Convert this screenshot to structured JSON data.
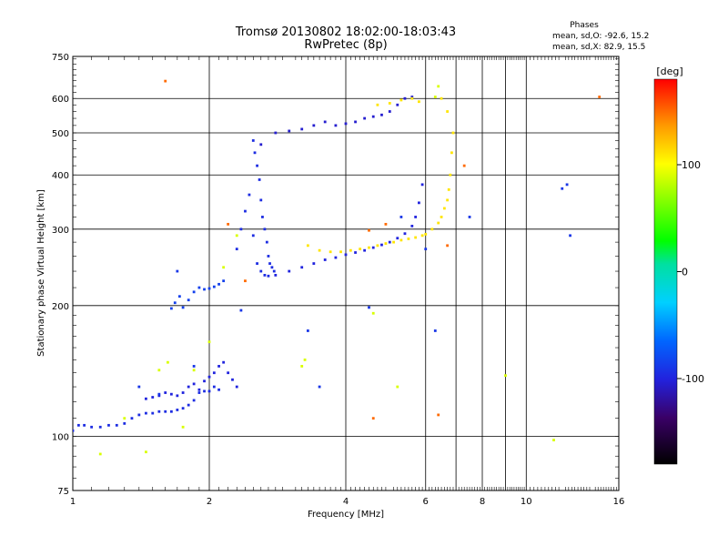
{
  "chart_data": {
    "type": "scatter",
    "title": "Tromsø 20130802 18:02:00-18:03:43",
    "subtitle": "RwPretec (8p)",
    "xlabel": "Frequency [MHz]",
    "ylabel": "Stationary phase Virtual Height [km]",
    "x_scale": "log",
    "y_scale": "log",
    "xlim": [
      1,
      16
    ],
    "ylim": [
      75,
      750
    ],
    "x_ticks": [
      1,
      2,
      4,
      6,
      8,
      10,
      16
    ],
    "x_tick_labels": [
      "1",
      "2",
      "4",
      "6",
      "8",
      "10",
      "16"
    ],
    "x_grid": [
      2,
      4,
      6,
      7,
      8,
      9,
      10
    ],
    "y_ticks": [
      75,
      100,
      200,
      300,
      400,
      500,
      600,
      750
    ],
    "y_tick_labels": [
      "75",
      "100",
      "200",
      "300",
      "400",
      "500",
      "600",
      "750"
    ],
    "y_grid": [
      100,
      200,
      300,
      400,
      500,
      600
    ],
    "grid": true,
    "phase_info": {
      "heading": "Phases",
      "line_o": "mean, sd,O: -92.6, 15.2",
      "line_x": "mean, sd,X:  82.9, 15.5"
    },
    "colorbar": {
      "label": "[deg]",
      "range": [
        -180,
        180
      ],
      "ticks": [
        100,
        0,
        -100
      ],
      "tick_labels": [
        "100",
        "0",
        "-100"
      ]
    },
    "series": [
      {
        "phase": -95,
        "x": [
          1.0,
          1.03,
          1.06,
          1.1,
          1.15,
          1.2,
          1.25,
          1.3,
          1.35,
          1.4,
          1.45,
          1.5,
          1.55,
          1.6,
          1.65,
          1.7,
          1.75,
          1.8,
          1.85,
          1.9,
          1.95,
          2.0,
          2.05,
          2.1
        ],
        "y": [
          103,
          106,
          106,
          105,
          105,
          106,
          106,
          107,
          110,
          112,
          113,
          113,
          114,
          114,
          114,
          115,
          116,
          118,
          121,
          126,
          127,
          127,
          130,
          128
        ]
      },
      {
        "phase": -100,
        "x": [
          1.45,
          1.5,
          1.55,
          1.6,
          1.65,
          1.7,
          1.75,
          1.8,
          1.85,
          1.9,
          1.95,
          2.0,
          2.05,
          2.1,
          2.15,
          2.2,
          2.25,
          2.3
        ],
        "y": [
          122,
          123,
          124,
          126,
          125,
          124,
          126,
          130,
          132,
          128,
          134,
          137,
          140,
          145,
          148,
          140,
          135,
          130
        ]
      },
      {
        "phase": -85,
        "x": [
          1.65,
          1.68,
          1.72,
          1.75,
          1.8,
          1.85,
          1.9,
          1.95,
          2.0,
          2.05,
          2.1,
          2.15
        ],
        "y": [
          197,
          203,
          210,
          198,
          206,
          215,
          220,
          218,
          219,
          221,
          224,
          228
        ]
      },
      {
        "phase": -95,
        "x": [
          2.3,
          2.35,
          2.4,
          2.45,
          2.5,
          2.55,
          2.6,
          2.65,
          2.7,
          2.5,
          2.52,
          2.55,
          2.58,
          2.6,
          2.62,
          2.65,
          2.68,
          2.7,
          2.72,
          2.75,
          2.78
        ],
        "y": [
          270,
          300,
          330,
          360,
          290,
          250,
          240,
          235,
          234,
          480,
          450,
          420,
          390,
          350,
          320,
          300,
          280,
          260,
          250,
          245,
          240
        ]
      },
      {
        "phase": -100,
        "x": [
          2.8,
          3.0,
          3.2,
          3.4,
          3.6,
          3.8,
          4.0,
          4.2,
          4.4,
          4.6,
          4.8,
          5.0,
          5.2,
          5.4,
          5.6,
          5.7,
          5.8,
          5.9
        ],
        "y": [
          235,
          240,
          245,
          250,
          255,
          258,
          262,
          265,
          268,
          272,
          276,
          280,
          286,
          293,
          305,
          320,
          345,
          380
        ]
      },
      {
        "phase": -105,
        "x": [
          2.6,
          2.8,
          3.0,
          3.2,
          3.4,
          3.6,
          3.8,
          4.0,
          4.2,
          4.4,
          4.6,
          4.8,
          5.0,
          5.2,
          5.4,
          5.6
        ],
        "y": [
          470,
          500,
          505,
          510,
          520,
          530,
          520,
          525,
          530,
          540,
          545,
          550,
          560,
          580,
          600,
          605
        ]
      },
      {
        "phase": 110,
        "x": [
          3.3,
          3.5,
          3.7,
          3.9,
          4.1,
          4.3,
          4.5,
          4.7,
          4.9,
          5.1,
          5.3,
          5.5,
          5.7,
          5.9,
          6.0,
          6.2,
          6.4,
          6.5,
          6.6,
          6.7,
          6.75,
          6.8,
          6.85,
          6.9
        ],
        "y": [
          275,
          268,
          266,
          266,
          268,
          270,
          272,
          275,
          278,
          280,
          283,
          285,
          287,
          290,
          292,
          300,
          310,
          320,
          335,
          350,
          370,
          400,
          450,
          500
        ]
      },
      {
        "phase": 110,
        "x": [
          4.7,
          5.0,
          5.3,
          5.6,
          5.8,
          6.5,
          6.7
        ],
        "y": [
          580,
          585,
          595,
          600,
          590,
          600,
          560
        ]
      },
      {
        "phase": 90,
        "x": [
          1.15,
          1.3,
          1.45,
          1.55,
          1.62,
          1.75,
          1.85,
          2.0,
          2.15,
          2.3,
          3.2,
          3.25,
          4.6,
          5.2,
          6.4,
          6.3,
          9.0,
          11.5
        ],
        "y": [
          91,
          110,
          92,
          142,
          148,
          105,
          142,
          165,
          245,
          290,
          145,
          150,
          192,
          130,
          640,
          605,
          138,
          98
        ]
      },
      {
        "phase": 150,
        "x": [
          1.6,
          2.2,
          2.4,
          4.5,
          4.6,
          4.9,
          6.4,
          6.7,
          7.3,
          14.5
        ],
        "y": [
          658,
          308,
          228,
          298,
          110,
          308,
          112,
          275,
          420,
          605
        ]
      },
      {
        "phase": -90,
        "x": [
          1.4,
          1.55,
          1.7,
          1.85,
          2.35,
          3.3,
          3.5,
          4.5,
          5.3,
          6.0,
          6.3,
          7.5,
          12.0,
          12.5,
          12.3
        ],
        "y": [
          130,
          125,
          240,
          145,
          195,
          175,
          130,
          198,
          320,
          270,
          175,
          320,
          372,
          290,
          380
        ]
      }
    ]
  }
}
